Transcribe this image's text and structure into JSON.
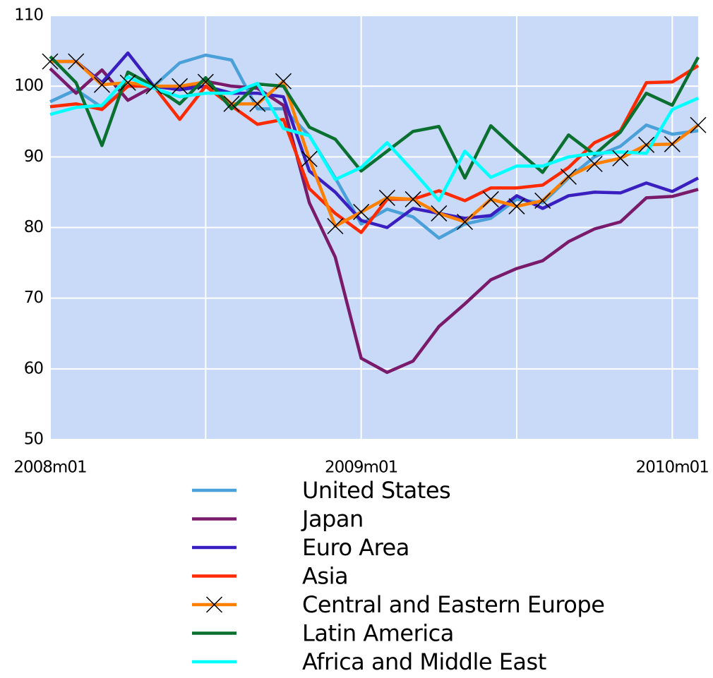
{
  "chart_data": {
    "type": "line",
    "categories": [
      "2008m01",
      null,
      null,
      null,
      null,
      null,
      null,
      null,
      null,
      null,
      null,
      null,
      "2009m01",
      null,
      null,
      null,
      null,
      null,
      null,
      null,
      null,
      null,
      null,
      null,
      "2010m01",
      null
    ],
    "ylim": [
      50,
      110
    ],
    "yticks": [
      50,
      60,
      70,
      80,
      90,
      100,
      110
    ],
    "grid": true,
    "legend": "bottom",
    "series": [
      {
        "name": "United States",
        "color": "#4aa0d8",
        "values": [
          97.8,
          99.5,
          97,
          100,
          100,
          103.3,
          104.4,
          103.7,
          96.8,
          96.8,
          93,
          87,
          80.5,
          82.6,
          81.5,
          78.5,
          80.5,
          81.3,
          84,
          83.5,
          87,
          90,
          91.5,
          94.5,
          93.2,
          93.7
        ]
      },
      {
        "name": "Japan",
        "color": "#7a1a6a",
        "values": [
          102.5,
          99,
          102.3,
          98,
          100,
          99.5,
          100.7,
          100,
          99.7,
          97.3,
          83.5,
          75.8,
          61.5,
          59.5,
          61.1,
          66,
          69.2,
          72.6,
          74.2,
          75.3,
          78,
          79.8,
          80.8,
          84.2,
          84.4,
          85.4
        ]
      },
      {
        "name": "Euro Area",
        "color": "#3a1fc0",
        "values": [
          103.5,
          103.5,
          100.5,
          104.7,
          100,
          99.5,
          100,
          99,
          99,
          98.5,
          88,
          85,
          81,
          80,
          82.7,
          82,
          81.3,
          81.7,
          84.5,
          82.7,
          84.5,
          85,
          84.9,
          86.3,
          85.1,
          87
        ]
      },
      {
        "name": "Asia",
        "color": "#ff2a00",
        "values": [
          97.1,
          97.5,
          96.7,
          100,
          100,
          95.3,
          100,
          97.2,
          94.6,
          95.3,
          85.5,
          82,
          79.3,
          84,
          84,
          85.2,
          83.8,
          85.6,
          85.6,
          86,
          88.5,
          92,
          93.7,
          100.5,
          100.6,
          102.9
        ]
      },
      {
        "name": "Central and Eastern Europe",
        "color": "#ff8000",
        "marker": "x",
        "values": [
          103.5,
          103.5,
          100.2,
          100.5,
          100,
          100,
          100.6,
          97.5,
          97.5,
          100.7,
          89.7,
          80.2,
          82.2,
          84.2,
          84,
          82,
          80.8,
          84,
          83,
          83.8,
          87.2,
          89,
          89.8,
          91.7,
          91.8,
          94.5
        ]
      },
      {
        "name": "Latin America",
        "color": "#0a7030",
        "values": [
          104.2,
          100.5,
          91.6,
          102,
          100,
          97.5,
          101.2,
          96.8,
          100.3,
          100,
          94.2,
          92.5,
          88,
          90.8,
          93.6,
          94.3,
          87,
          94.4,
          91,
          87.8,
          93.1,
          90.3,
          93.5,
          99,
          97.3,
          104.1
        ]
      },
      {
        "name": "Africa and Middle East",
        "color": "#00ffff",
        "values": [
          96,
          97,
          97.3,
          101.3,
          99.7,
          98.5,
          99,
          99,
          100.4,
          94,
          93,
          86.8,
          88.5,
          92,
          88,
          83.8,
          90.8,
          87.1,
          88.7,
          88.7,
          90,
          90.5,
          90.7,
          90.5,
          96.7,
          98.3
        ]
      }
    ]
  }
}
